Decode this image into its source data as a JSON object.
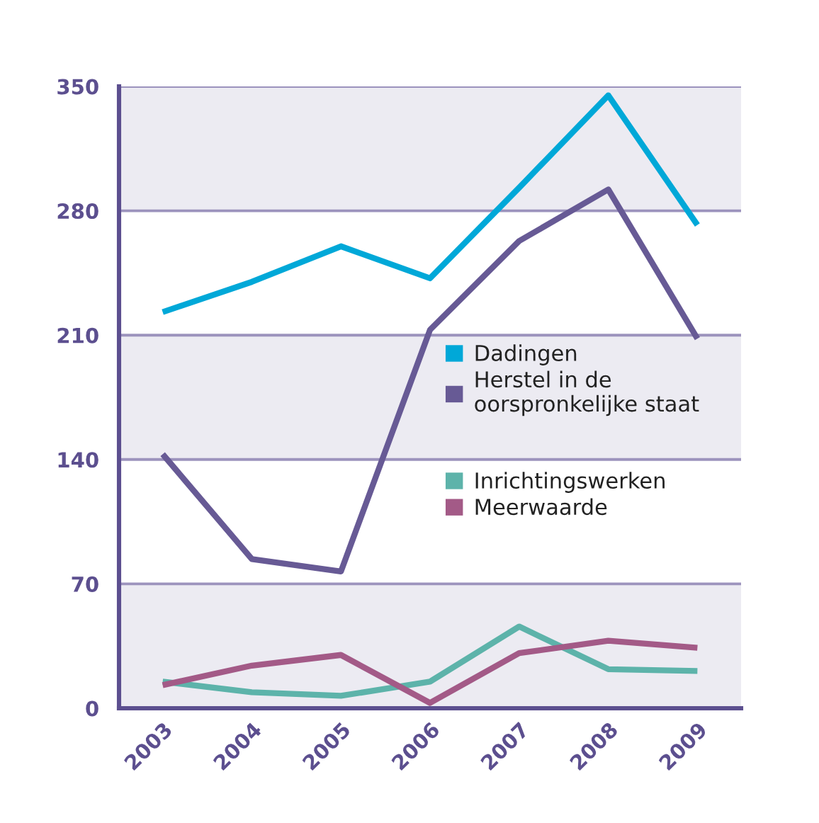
{
  "chart_data": {
    "type": "line",
    "categories": [
      "2003",
      "2004",
      "2005",
      "2006",
      "2007",
      "2008",
      "2009"
    ],
    "series": [
      {
        "name": "Dadingen",
        "color": "#00a8d8",
        "values": [
          223,
          240,
          260,
          242,
          293,
          345,
          272
        ]
      },
      {
        "name": "Herstel in de oorspronkelijke staat",
        "color": "#675a95",
        "values": [
          143,
          84,
          77,
          213,
          263,
          292,
          208
        ]
      },
      {
        "name": "Inrichtingswerken",
        "color": "#5db3aa",
        "values": [
          15,
          9,
          7,
          15,
          46,
          22,
          21
        ]
      },
      {
        "name": "Meerwaarde",
        "color": "#a35a87",
        "values": [
          13,
          24,
          30,
          3,
          31,
          38,
          34
        ]
      }
    ],
    "ylim": [
      0,
      350
    ],
    "yticks": [
      0,
      70,
      140,
      210,
      280,
      350
    ],
    "grid": "y",
    "legend": "right",
    "line_style": "solid",
    "bands": [
      {
        "axis": "y",
        "from": 0,
        "to": 70,
        "color": "#ecebf2"
      },
      {
        "axis": "y",
        "from": 140,
        "to": 210,
        "color": "#ecebf2"
      },
      {
        "axis": "y",
        "from": 280,
        "to": 350,
        "color": "#ecebf2"
      }
    ]
  }
}
